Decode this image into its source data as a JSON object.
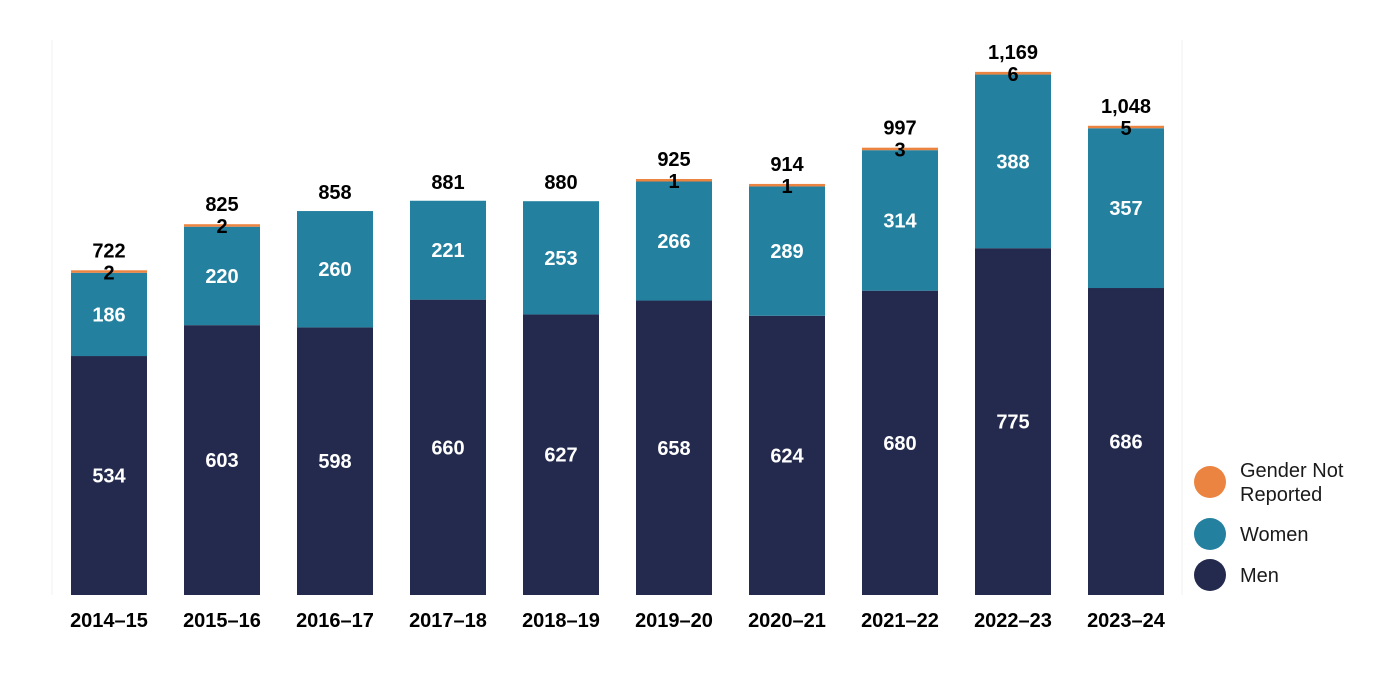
{
  "chart_data": {
    "type": "bar",
    "stacked": true,
    "categories": [
      "2014–15",
      "2015–16",
      "2016–17",
      "2017–18",
      "2018–19",
      "2019–20",
      "2020–21",
      "2021–22",
      "2022–23",
      "2023–24"
    ],
    "series": [
      {
        "name": "Men",
        "color": "#232a4d",
        "values": [
          534,
          603,
          598,
          660,
          627,
          658,
          624,
          680,
          775,
          686
        ]
      },
      {
        "name": "Women",
        "color": "#23809f",
        "values": [
          186,
          220,
          260,
          221,
          253,
          266,
          289,
          314,
          388,
          357
        ]
      },
      {
        "name": "Gender Not Reported",
        "color": "#ec8441",
        "values": [
          2,
          2,
          0,
          0,
          0,
          1,
          1,
          3,
          6,
          5
        ]
      }
    ],
    "totals": [
      "722",
      "825",
      "858",
      "881",
      "880",
      "925",
      "914",
      "997",
      "1,169",
      "1,048"
    ],
    "not_reported_labels": [
      "2",
      "2",
      "",
      "",
      "",
      "1",
      "1",
      "3",
      "6",
      "5"
    ],
    "legend": {
      "position": "bottom-right",
      "items": [
        {
          "label_lines": [
            "Gender Not",
            "Reported"
          ],
          "color": "#ec8441"
        },
        {
          "label_lines": [
            "Women"
          ],
          "color": "#23809f"
        },
        {
          "label_lines": [
            "Men"
          ],
          "color": "#232a4d"
        }
      ]
    },
    "grid": false
  }
}
